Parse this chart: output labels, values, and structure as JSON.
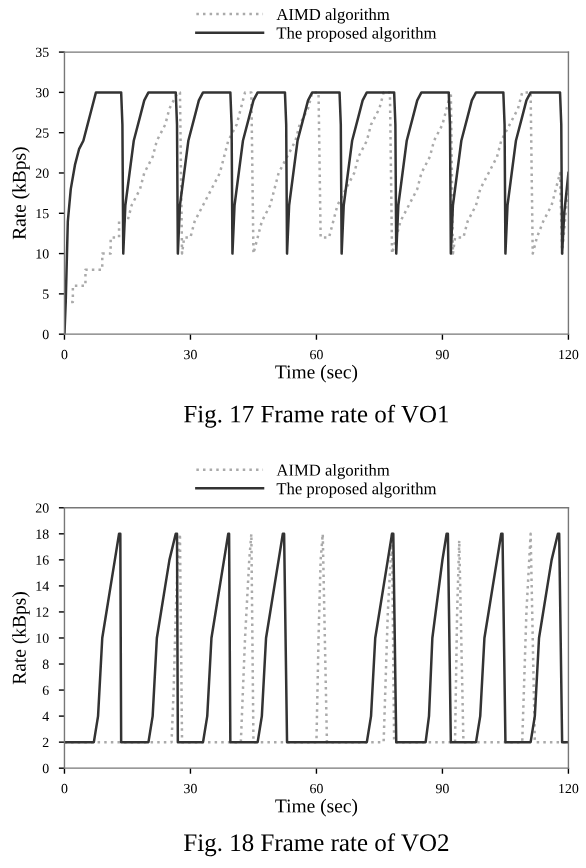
{
  "chart_data": [
    {
      "type": "line",
      "xlabel": "Time (sec)",
      "ylabel": "Rate (kBps)",
      "annotations": [
        "Fig. 17 Frame rate of VO1"
      ],
      "xlim": [
        0,
        120
      ],
      "xticks": [
        0,
        30,
        60,
        90,
        120
      ],
      "ylim": [
        0,
        35
      ],
      "yticks": [
        0,
        5,
        10,
        15,
        20,
        25,
        30,
        35
      ],
      "grid": false,
      "legend": "top",
      "series": [
        {
          "name": "AIMD algorithm",
          "color": "#aaaaaa",
          "line_style": "dotted",
          "x": [
            0,
            2,
            2,
            5,
            5,
            9,
            9,
            11,
            11,
            13,
            13,
            15,
            16,
            18,
            19,
            21,
            22,
            24,
            25,
            27,
            27.5,
            28,
            28.5,
            30,
            31,
            33,
            35,
            37,
            38,
            39,
            41,
            42,
            43,
            44.5,
            45,
            46,
            47,
            49,
            50,
            51,
            53,
            55,
            56,
            58,
            59,
            60.5,
            61,
            63,
            64,
            65,
            67,
            69,
            70,
            72,
            73,
            75,
            76,
            77.5,
            78,
            79,
            80,
            82,
            84,
            85,
            87,
            88,
            90,
            91,
            92,
            92.5,
            93,
            95,
            96,
            98,
            99,
            101,
            103,
            104,
            106,
            108,
            109,
            111,
            111.5,
            112.5,
            114,
            116,
            117,
            118,
            118.5,
            119.5,
            120
          ],
          "values": [
            4,
            4,
            6,
            6,
            8,
            8,
            10,
            10,
            12,
            12,
            14,
            14,
            16,
            18,
            20,
            22,
            24,
            26,
            28,
            30,
            30,
            10,
            12,
            12,
            14,
            16,
            18,
            20,
            22,
            24,
            26,
            28,
            30,
            30,
            10,
            12,
            14,
            16,
            18,
            20,
            22,
            24,
            26,
            28,
            30,
            30,
            12,
            12,
            14,
            16,
            18,
            20,
            22,
            24,
            26,
            28,
            30,
            30,
            10,
            12,
            14,
            16,
            18,
            20,
            22,
            24,
            26,
            28,
            30,
            10,
            12,
            12,
            14,
            16,
            18,
            20,
            22,
            24,
            26,
            28,
            30,
            30,
            10,
            12,
            14,
            16,
            18,
            20,
            10,
            16,
            18
          ]
        },
        {
          "name": "The proposed algorithm",
          "color": "#333333",
          "line_style": "solid",
          "x": [
            0,
            0.3,
            0.8,
            1.5,
            2.5,
            3.5,
            4.5,
            5.5,
            6.5,
            7.5,
            13.5,
            13.8,
            14,
            14.5,
            15.5,
            16.5,
            18,
            19,
            20,
            26.5,
            26.8,
            27,
            27.5,
            28.5,
            29.5,
            31,
            32,
            33,
            39.5,
            39.8,
            40,
            40.5,
            41.5,
            42.5,
            44,
            45,
            46,
            52.5,
            52.8,
            53,
            53.5,
            54.5,
            55.5,
            57,
            58,
            59,
            65.5,
            65.8,
            66,
            66.5,
            67.5,
            68.5,
            70,
            71,
            72,
            78.5,
            78.8,
            79,
            79.5,
            80.5,
            81.5,
            83,
            84,
            85,
            91.5,
            91.8,
            92,
            92.5,
            93.5,
            94.5,
            96,
            97,
            98,
            104.5,
            104.8,
            105,
            105.5,
            106.5,
            107.5,
            109,
            110,
            111,
            118,
            118.3,
            118.5,
            119,
            120
          ],
          "values": [
            0,
            4,
            14,
            18,
            21,
            23,
            24,
            26,
            28,
            30,
            30,
            26,
            10,
            16,
            20,
            24,
            27,
            29,
            30,
            30,
            26,
            10,
            16,
            20,
            24,
            27,
            29,
            30,
            30,
            26,
            10,
            16,
            20,
            24,
            27,
            29,
            30,
            30,
            26,
            10,
            16,
            20,
            24,
            27,
            29,
            30,
            30,
            26,
            10,
            16,
            20,
            24,
            27,
            29,
            30,
            30,
            26,
            10,
            16,
            20,
            24,
            27,
            29,
            30,
            30,
            26,
            10,
            16,
            20,
            24,
            27,
            29,
            30,
            30,
            26,
            10,
            16,
            20,
            24,
            27,
            29,
            30,
            30,
            26,
            10,
            15,
            20
          ]
        }
      ]
    },
    {
      "type": "line",
      "xlabel": "Time (sec)",
      "ylabel": "Rate (kBps)",
      "annotations": [
        "Fig. 18 Frame rate of VO2"
      ],
      "xlim": [
        0,
        120
      ],
      "xticks": [
        0,
        30,
        60,
        90,
        120
      ],
      "ylim": [
        0,
        20
      ],
      "yticks": [
        0,
        2,
        4,
        6,
        8,
        10,
        12,
        14,
        16,
        18,
        20
      ],
      "grid": false,
      "legend": "top",
      "series": [
        {
          "name": "AIMD algorithm",
          "color": "#aaaaaa",
          "line_style": "dotted",
          "x": [
            0,
            25.5,
            26,
            26.5,
            27,
            27.5,
            28,
            42,
            43,
            44,
            44.5,
            45,
            60,
            60.5,
            61,
            61.5,
            62.5,
            76,
            77,
            78,
            78.5,
            93,
            93.5,
            94,
            95,
            109,
            110,
            111,
            112,
            120
          ],
          "values": [
            2,
            2,
            6,
            12,
            16,
            18,
            2,
            2,
            10,
            16,
            18,
            2,
            2,
            10,
            16,
            18,
            2,
            2,
            12,
            18,
            2,
            2,
            12,
            17.5,
            2,
            2,
            12,
            18,
            2,
            2
          ]
        },
        {
          "name": "The proposed algorithm",
          "color": "#333333",
          "line_style": "solid",
          "x": [
            0,
            7,
            8,
            9,
            10,
            11,
            12,
            13,
            13.3,
            13.5,
            20,
            21,
            22,
            23,
            24,
            25,
            26.5,
            26.8,
            27,
            33,
            34,
            35,
            36,
            37,
            38,
            39,
            39.2,
            39.5,
            46,
            47,
            48,
            49,
            50,
            51,
            52,
            52.3,
            53,
            72,
            73,
            74,
            75,
            76,
            77,
            78,
            78.3,
            79,
            86,
            86.8,
            87.6,
            88.4,
            89.2,
            90,
            91,
            91.3,
            92,
            98,
            99,
            100,
            101,
            102,
            103,
            104,
            104.3,
            105,
            111,
            112,
            113,
            114,
            115,
            116,
            117.5,
            117.8,
            118.5,
            120
          ],
          "values": [
            2,
            2,
            4,
            10,
            12,
            14,
            16,
            18,
            18,
            2,
            2,
            4,
            10,
            12,
            14,
            16,
            18,
            18,
            2,
            2,
            4,
            10,
            12,
            14,
            16,
            18,
            18,
            2,
            2,
            4,
            10,
            12,
            14,
            16,
            18,
            18,
            2,
            2,
            4,
            10,
            12,
            14,
            16,
            18,
            18,
            2,
            2,
            4,
            10,
            12,
            14,
            16,
            18,
            18,
            2,
            2,
            4,
            10,
            12,
            14,
            16,
            18,
            18,
            2,
            2,
            4,
            10,
            12,
            14,
            16,
            18,
            18,
            2,
            2
          ]
        }
      ]
    }
  ]
}
